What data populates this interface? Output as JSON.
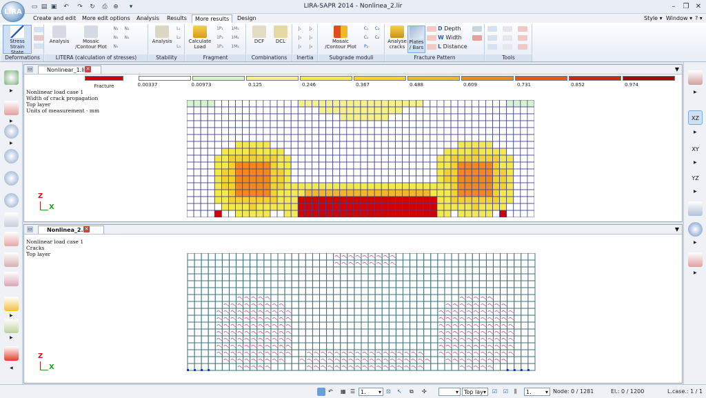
{
  "app": {
    "title": "LIRA-SAPR  2014   - Nonlinea_2.lir",
    "logo": "LIRA"
  },
  "menu": {
    "tabs": [
      {
        "label": "Create and edit"
      },
      {
        "label": "More edit options"
      },
      {
        "label": "Analysis"
      },
      {
        "label": "Results"
      },
      {
        "label": "More results"
      },
      {
        "label": "Design"
      }
    ],
    "active": "More results",
    "style": "Style",
    "window": "Window",
    "help": "?"
  },
  "ribbon": {
    "groups": [
      {
        "label": "Deformations"
      },
      {
        "label": "LITERA (calculation of stresses)"
      },
      {
        "label": "Stability"
      },
      {
        "label": "Fragment"
      },
      {
        "label": "Combinations"
      },
      {
        "label": "Inertia"
      },
      {
        "label": "Subgrade moduli"
      },
      {
        "label": "Fracture Pattern"
      },
      {
        "label": "Tools"
      }
    ],
    "buttons": {
      "stress_strain": "Stress Strain State",
      "analysis1": "Analysis",
      "mosaic": "Mosaic /Contour Plot",
      "analysis2": "Analysis",
      "calc_load": "Calculate Load",
      "dcf": "DCF",
      "dcl": "DCL",
      "mosaic2": "Mosaic /Contour Plot",
      "analyse_cracks": "Analyse cracks",
      "plates_bars": "Plates / Bars",
      "depth": "Depth",
      "width": "Width",
      "distance": "Distance"
    },
    "mini_labels": [
      "N₁",
      "N₂",
      "N₃",
      "N₄",
      "N₅",
      "L₁",
      "L₂",
      "L₃",
      "1P₁",
      "1M₁",
      "1P₂",
      "1M₂",
      "1P₃",
      "1M₃",
      "J₁",
      "J₂",
      "J₃",
      "J₄",
      "J₅",
      "J₆",
      "C₁",
      "C₂",
      "C₁",
      "C₂",
      "P₂",
      "D",
      "W",
      "L"
    ]
  },
  "pane1": {
    "tab": "Nonlinear_1.lir",
    "info": [
      "Nonlinear load case 1",
      "Width of crack propagation",
      "Top layer",
      "Units of measurement - mm"
    ],
    "legend": {
      "fracture_label": "Fracture",
      "fracture_color": "#d40000",
      "ticks": [
        "0.00337",
        "0.00973",
        "0.125",
        "0.246",
        "0.367",
        "0.488",
        "0.609",
        "0.731",
        "0.852",
        "0.974"
      ],
      "colors": [
        "#ffffff",
        "#d8f3c9",
        "#f4f08a",
        "#f2ea4a",
        "#f1d32c",
        "#f2b62a",
        "#ee8a1c",
        "#e45a12",
        "#c92b0a",
        "#a10a0a"
      ]
    },
    "axis": {
      "z": "Z",
      "x": "X"
    }
  },
  "pane2": {
    "tab": "Nonlinea_2.lir",
    "info": [
      "Nonlinear load case 1",
      "Cracks",
      "Top layer"
    ],
    "axis": {
      "z": "Z",
      "x": "X"
    }
  },
  "status": {
    "combo1": "1.",
    "layer": "Top lay",
    "combo2": "1.",
    "node": "Node: 0 / 1281",
    "el": "El.: 0 / 1200",
    "lcase": "L.case.: 1 / 1"
  },
  "right_views": {
    "xz": "XZ",
    "xy": "XY",
    "yz": "YZ"
  },
  "colors": {
    "grid": "#3f3f8f",
    "grid2": "#3a6f72",
    "crack": "#c86a9a"
  }
}
